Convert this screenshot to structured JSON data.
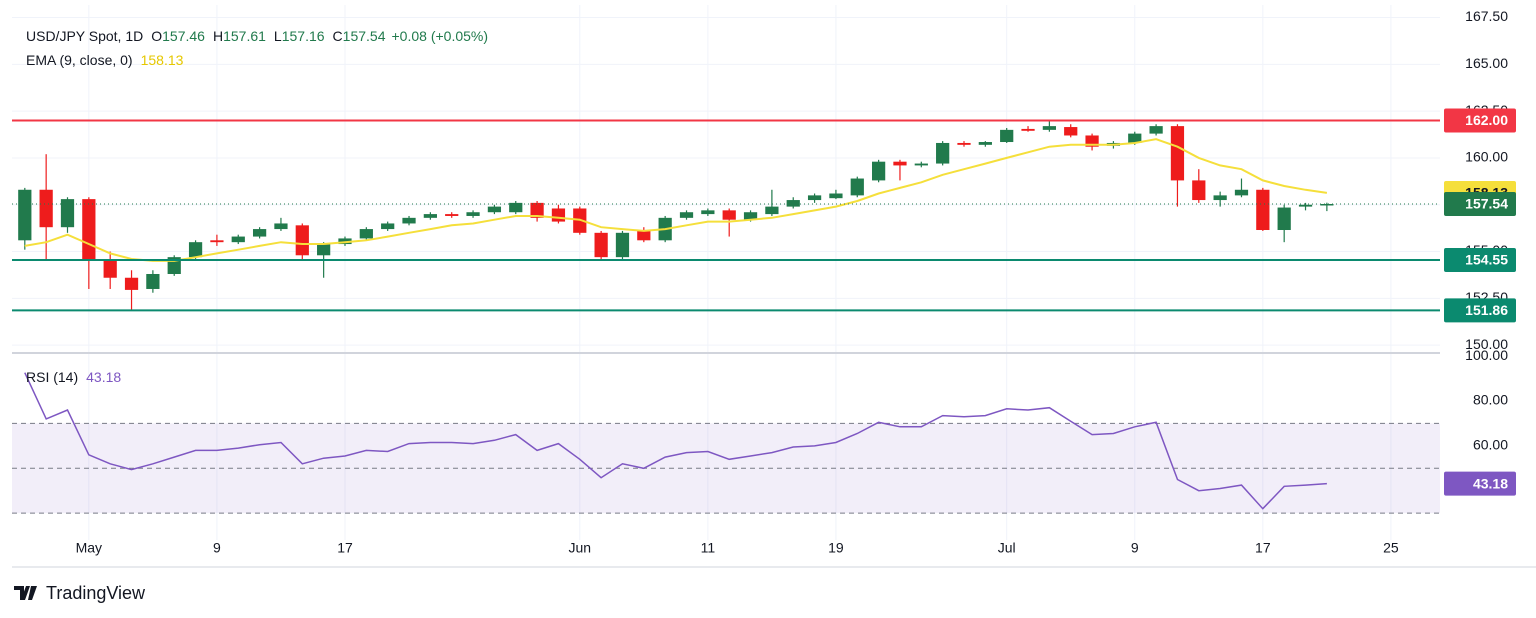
{
  "chart_data": [
    {
      "type": "candlestick",
      "title": "USD/JPY Spot, 1D",
      "ohlc_legend": [
        {
          "key": "O",
          "value": 157.46
        },
        {
          "key": "H",
          "value": 157.61
        },
        {
          "key": "L",
          "value": 157.16
        },
        {
          "key": "C",
          "value": 157.54
        }
      ],
      "change": "+0.08 (+0.05%)",
      "up_color": "#217a4c",
      "down_color": "#ee1c1c",
      "open": [
        155.6,
        158.3,
        156.3,
        157.8,
        154.6,
        153.6,
        153.0,
        153.8,
        154.7,
        155.6,
        155.5,
        155.8,
        156.2,
        156.4,
        154.8,
        155.4,
        155.7,
        156.2,
        156.5,
        156.8,
        157.0,
        156.9,
        157.1,
        157.1,
        157.6,
        157.3,
        157.3,
        156.0,
        154.7,
        156.1,
        155.6,
        156.8,
        157.0,
        157.2,
        156.7,
        157.0,
        157.4,
        157.75,
        157.85,
        158.0,
        158.8,
        159.8,
        159.6,
        159.7,
        160.8,
        160.7,
        160.85,
        161.55,
        161.5,
        161.65,
        161.2,
        160.65,
        160.8,
        161.3,
        161.7,
        158.8,
        157.75,
        158.0,
        158.3,
        156.15,
        157.4,
        157.46
      ],
      "high": [
        158.4,
        160.2,
        157.9,
        157.9,
        155.0,
        154.0,
        154.0,
        154.8,
        155.6,
        155.9,
        155.9,
        156.3,
        156.8,
        156.5,
        155.5,
        155.8,
        156.3,
        156.6,
        156.9,
        157.1,
        157.1,
        157.2,
        157.5,
        157.7,
        157.7,
        157.5,
        157.4,
        156.1,
        156.1,
        156.3,
        156.9,
        157.2,
        157.3,
        157.3,
        157.2,
        158.3,
        157.9,
        158.1,
        158.3,
        159.0,
        159.9,
        159.9,
        159.8,
        160.9,
        160.9,
        160.9,
        161.6,
        161.7,
        161.95,
        161.8,
        161.3,
        160.9,
        161.4,
        161.8,
        161.8,
        159.4,
        158.2,
        158.9,
        158.4,
        157.5,
        157.6,
        157.61
      ],
      "low": [
        155.1,
        154.5,
        156.0,
        153.0,
        153.0,
        151.86,
        152.8,
        153.7,
        154.6,
        155.3,
        155.4,
        155.7,
        156.1,
        154.6,
        153.6,
        155.3,
        155.6,
        156.1,
        156.4,
        156.7,
        156.8,
        156.8,
        157.0,
        157.0,
        156.6,
        156.5,
        155.9,
        154.6,
        154.6,
        155.5,
        155.5,
        156.7,
        156.9,
        155.8,
        156.6,
        156.9,
        157.3,
        157.6,
        157.8,
        157.9,
        158.7,
        158.8,
        159.5,
        159.6,
        160.6,
        160.6,
        160.8,
        161.4,
        161.4,
        161.1,
        160.4,
        160.5,
        160.7,
        161.2,
        157.4,
        157.6,
        157.4,
        157.9,
        156.1,
        155.5,
        157.2,
        157.16
      ],
      "close": [
        158.3,
        156.3,
        157.8,
        154.6,
        153.6,
        152.95,
        153.8,
        154.7,
        155.5,
        155.5,
        155.8,
        156.2,
        156.5,
        154.8,
        155.4,
        155.7,
        156.2,
        156.5,
        156.8,
        157.0,
        156.9,
        157.1,
        157.4,
        157.6,
        156.8,
        156.6,
        156.0,
        154.7,
        156.0,
        155.6,
        156.8,
        157.1,
        157.2,
        156.7,
        157.1,
        157.4,
        157.75,
        158.0,
        158.1,
        158.9,
        159.8,
        159.6,
        159.7,
        160.8,
        160.7,
        160.85,
        161.5,
        161.45,
        161.7,
        161.2,
        160.6,
        160.8,
        161.3,
        161.7,
        158.8,
        157.75,
        158.0,
        158.3,
        156.15,
        157.35,
        157.5,
        157.54
      ],
      "series": [
        {
          "name": "EMA (9, close, 0)",
          "color": "#f5df3b",
          "values": [
            155.3,
            155.5,
            155.9,
            155.4,
            154.9,
            154.6,
            154.5,
            154.5,
            154.7,
            154.9,
            155.1,
            155.3,
            155.5,
            155.4,
            155.4,
            155.5,
            155.6,
            155.8,
            156.0,
            156.2,
            156.4,
            156.5,
            156.7,
            156.9,
            156.9,
            156.8,
            156.7,
            156.3,
            156.2,
            156.1,
            156.2,
            156.4,
            156.6,
            156.6,
            156.7,
            156.8,
            157.0,
            157.2,
            157.4,
            157.7,
            158.1,
            158.4,
            158.7,
            159.1,
            159.4,
            159.7,
            160.0,
            160.3,
            160.6,
            160.7,
            160.7,
            160.7,
            160.8,
            161.0,
            160.6,
            160.0,
            159.6,
            159.4,
            158.8,
            158.5,
            158.3,
            158.13
          ]
        }
      ],
      "hlines": [
        {
          "value": 162,
          "label": "162.00",
          "color": "#f23645"
        },
        {
          "value": 154.55,
          "label": "154.55",
          "color": "#0b8a6f"
        },
        {
          "value": 151.86,
          "label": "151.86",
          "color": "#0b8a6f"
        }
      ],
      "xlim": [
        -0.6,
        66.3
      ],
      "ylim": [
        149.74,
        168.17
      ],
      "yticks": [
        {
          "value": 150,
          "label": "150.00"
        },
        {
          "value": 152.5,
          "label": "152.50"
        },
        {
          "value": 155,
          "label": "155.00"
        },
        {
          "value": 157.5,
          "label": "157.50"
        },
        {
          "value": 160,
          "label": "160.00"
        },
        {
          "value": 162.5,
          "label": "162.50"
        },
        {
          "value": 165,
          "label": "165.00"
        },
        {
          "value": 167.5,
          "label": "167.50"
        }
      ],
      "grid": true
    },
    {
      "type": "line",
      "series": [
        {
          "name": "RSI (14)",
          "color": "#7e57c2",
          "values": [
            92.6,
            72,
            76,
            56,
            52,
            49.4,
            52,
            55,
            58,
            58,
            59,
            60.5,
            61.5,
            52,
            54.5,
            55.5,
            58,
            57.5,
            61,
            61.5,
            61.5,
            61,
            62.5,
            65,
            58,
            61,
            54,
            45.8,
            52,
            50,
            55,
            57,
            57.5,
            54,
            55.5,
            57,
            59.5,
            60,
            61.5,
            65.5,
            70.5,
            68.5,
            68.5,
            73.5,
            73,
            73.5,
            76.5,
            76,
            77,
            71,
            65,
            65.5,
            68.5,
            70.5,
            45,
            40,
            41,
            42.5,
            32,
            42,
            42.5,
            43.18
          ]
        }
      ],
      "levels": [
        70,
        50,
        30
      ],
      "xlim": [
        -0.6,
        66.3
      ],
      "ylim": [
        22.5,
        100.5
      ],
      "yticks": [
        {
          "value": 60,
          "label": "60.00"
        },
        {
          "value": 80,
          "label": "80.00"
        },
        {
          "value": 100,
          "label": "100.00"
        }
      ],
      "xticks": [
        {
          "value": 3,
          "label": "May"
        },
        {
          "value": 9,
          "label": "9"
        },
        {
          "value": 15,
          "label": "17"
        },
        {
          "value": 26,
          "label": "Jun"
        },
        {
          "value": 32,
          "label": "11"
        },
        {
          "value": 38,
          "label": "19"
        },
        {
          "value": 46,
          "label": "Jul"
        },
        {
          "value": 52,
          "label": "9"
        },
        {
          "value": 58,
          "label": "17"
        },
        {
          "value": 64,
          "label": "25"
        }
      ],
      "grid": true
    }
  ],
  "footer": {
    "brand": "TradingView"
  }
}
